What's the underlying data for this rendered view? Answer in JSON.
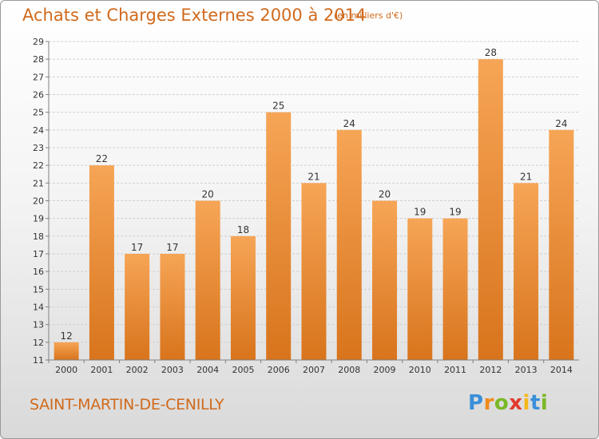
{
  "header": {
    "title": "Achats et Charges Externes 2000 à 2014",
    "subtitle": "(en milliers d'€)"
  },
  "footer": {
    "city": "SAINT-MARTIN-DE-CENILLY",
    "brand": [
      "P",
      "r",
      "o",
      "x",
      "i",
      "t",
      "i"
    ],
    "brand_colors": [
      "#3a8fd9",
      "#f08a1c",
      "#7ab825",
      "#e13b2e",
      "#f5b81a",
      "#3a8fd9",
      "#7ab825"
    ]
  },
  "colors": {
    "bar_top": "#f6a556",
    "bar_bottom": "#d8741c",
    "grid": "#cfcfcf",
    "axis": "#808080",
    "text": "#333333",
    "accent": "#d06a1c"
  },
  "chart_data": {
    "type": "bar",
    "categories": [
      "2000",
      "2001",
      "2002",
      "2003",
      "2004",
      "2005",
      "2006",
      "2007",
      "2008",
      "2009",
      "2010",
      "2011",
      "2012",
      "2013",
      "2014"
    ],
    "values": [
      12,
      22,
      17,
      17,
      20,
      18,
      25,
      21,
      24,
      20,
      19,
      19,
      28,
      21,
      24
    ],
    "data_labels": [
      "12",
      "22",
      "17",
      "17",
      "20",
      "18",
      "25",
      "21",
      "24",
      "20",
      "19",
      "19",
      "28",
      "21",
      "24"
    ],
    "yticks": [
      "11",
      "12",
      "13",
      "14",
      "15",
      "16",
      "17",
      "18",
      "19",
      "20",
      "21",
      "22",
      "23",
      "24",
      "25",
      "26",
      "27",
      "28",
      "29"
    ],
    "ylim": [
      11,
      29
    ],
    "grid": true,
    "legend": "none"
  }
}
